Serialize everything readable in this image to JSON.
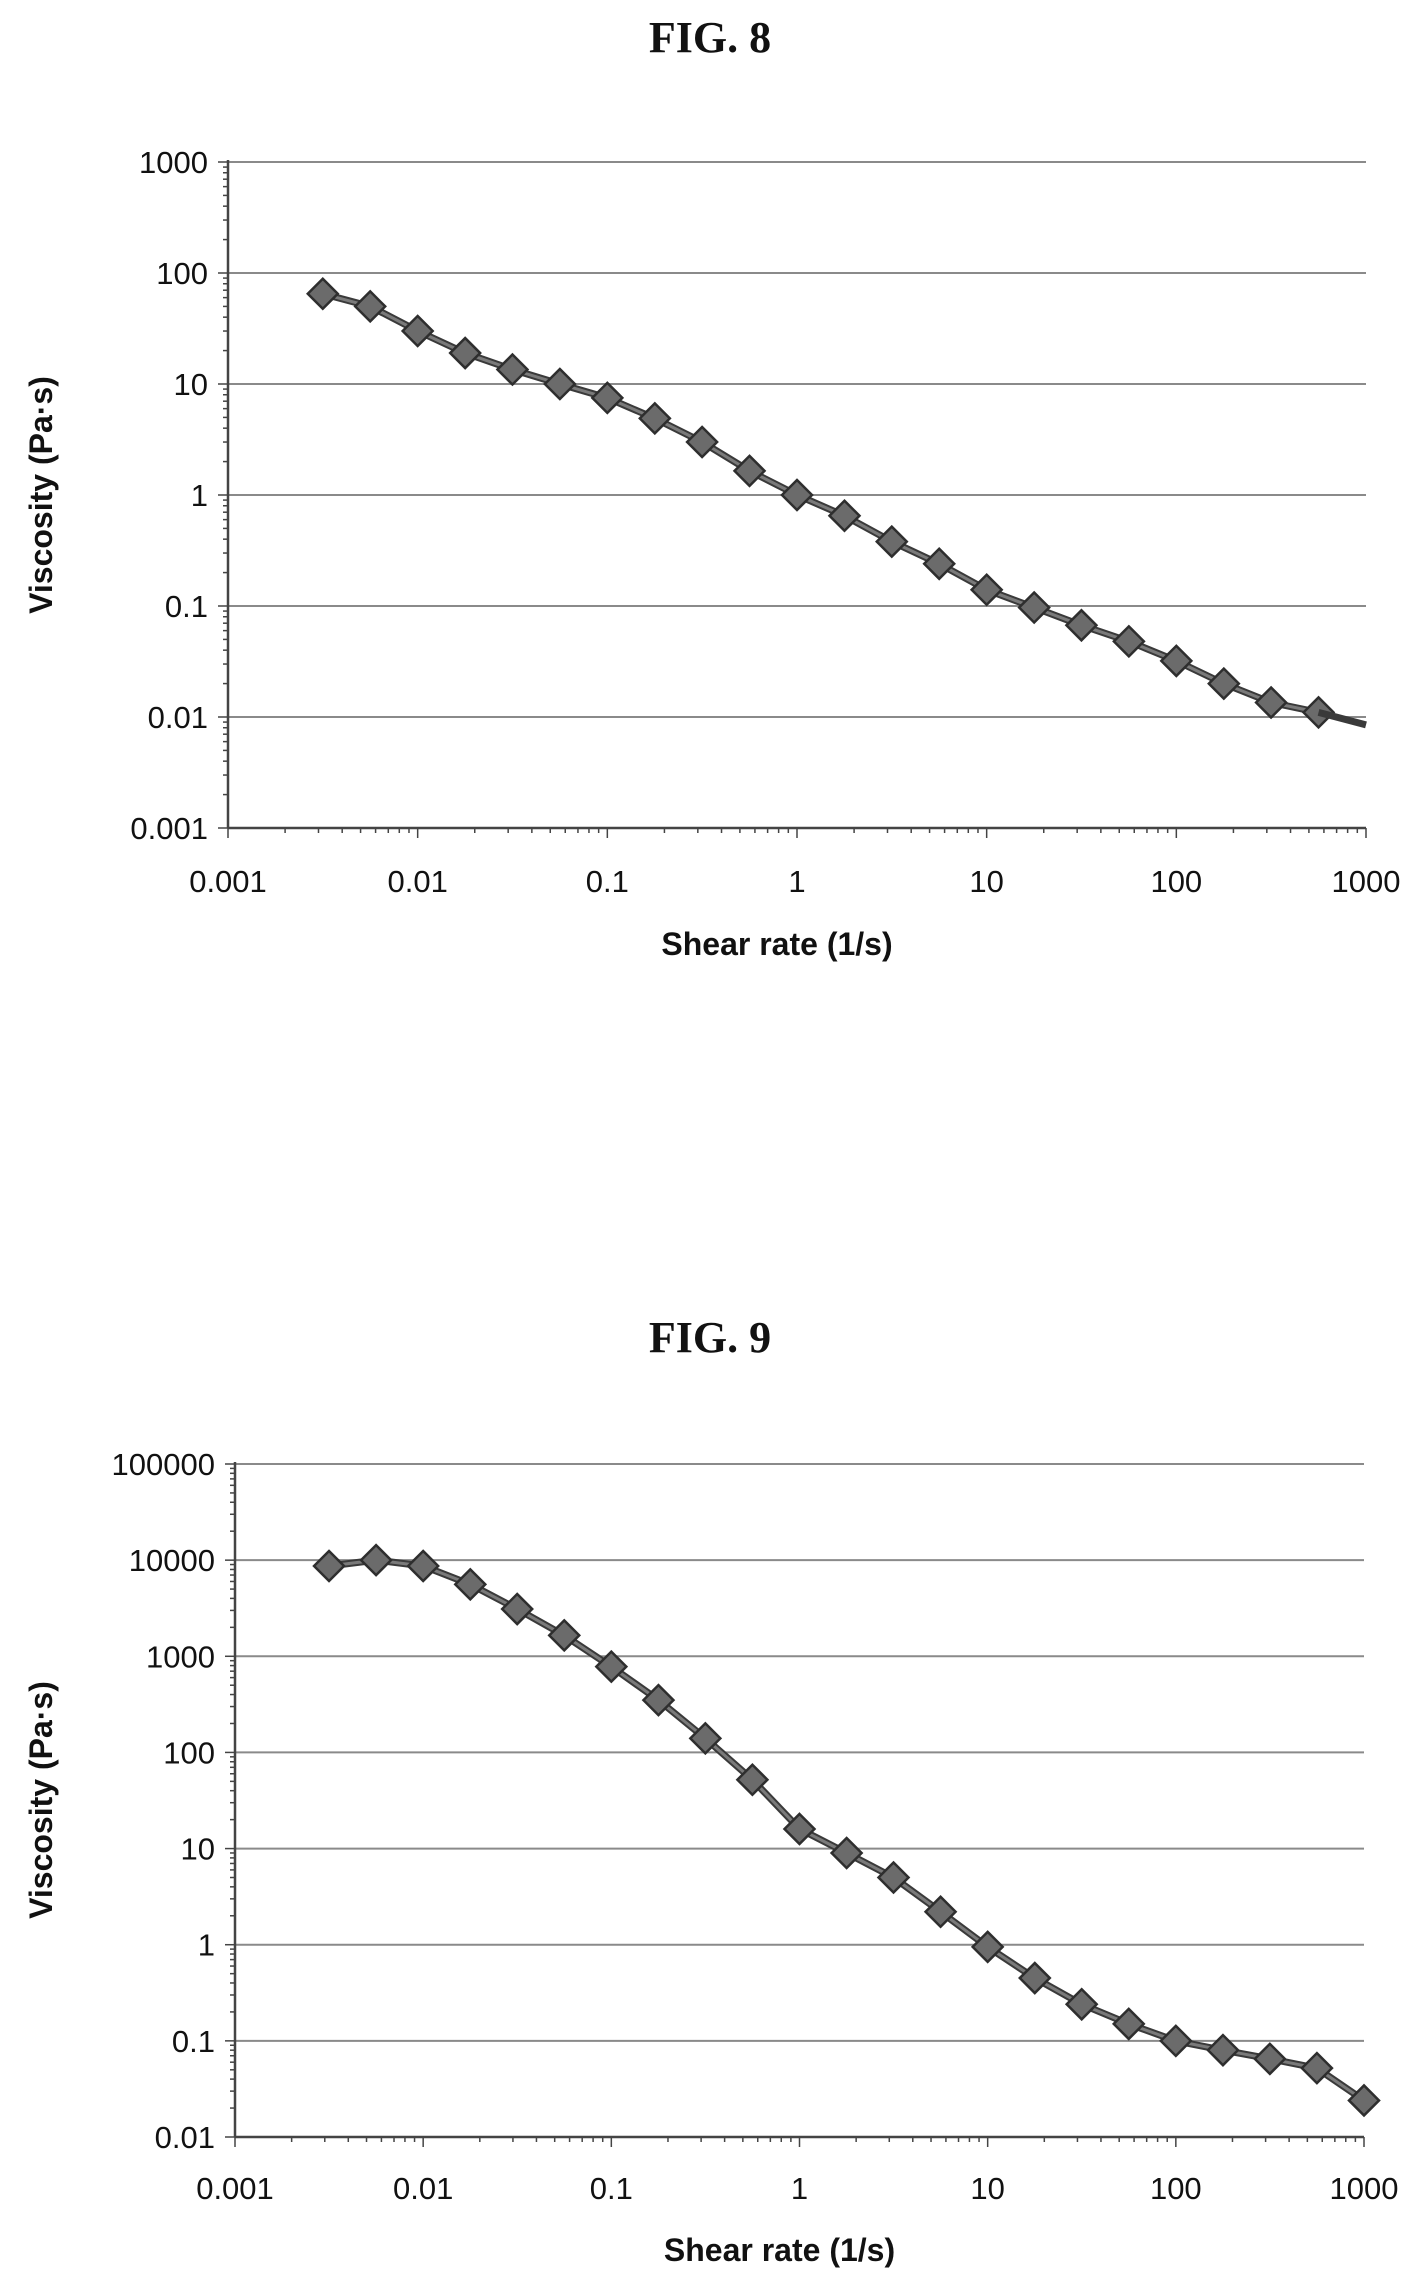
{
  "figures": [
    {
      "title": "FIG. 8"
    },
    {
      "title": "FIG. 9"
    }
  ],
  "chart_data": [
    {
      "type": "line",
      "title": "FIG. 8",
      "xlabel": "Shear rate (1/s)",
      "ylabel": "Viscosity (Pa·s)",
      "x_scale": "log",
      "y_scale": "log",
      "xlim": [
        0.001,
        1000
      ],
      "ylim": [
        0.001,
        1000
      ],
      "x_ticks": [
        "0.001",
        "0.01",
        "0.1",
        "1",
        "10",
        "100",
        "1000"
      ],
      "y_ticks": [
        "0.001",
        "0.01",
        "0.1",
        "1",
        "10",
        "100",
        "1000"
      ],
      "grid": "horizontal",
      "marker": "diamond",
      "series": [
        {
          "x": [
            0.00316,
            0.00562,
            0.01,
            0.0178,
            0.0316,
            0.0562,
            0.1,
            0.178,
            0.316,
            0.562,
            1,
            1.78,
            3.16,
            5.62,
            10,
            17.8,
            31.6,
            56.2,
            100,
            178,
            316,
            562
          ],
          "y": [
            65,
            50,
            30,
            19,
            13.5,
            10,
            7.5,
            4.9,
            3.0,
            1.65,
            1.0,
            0.65,
            0.38,
            0.24,
            0.14,
            0.097,
            0.067,
            0.048,
            0.032,
            0.02,
            0.0135,
            0.011
          ]
        }
      ]
    },
    {
      "type": "line",
      "title": "FIG. 9",
      "xlabel": "Shear rate (1/s)",
      "ylabel": "Viscosity (Pa·s)",
      "x_scale": "log",
      "y_scale": "log",
      "xlim": [
        0.001,
        1000
      ],
      "ylim": [
        0.01,
        100000
      ],
      "x_ticks": [
        "0.001",
        "0.01",
        "0.1",
        "1",
        "10",
        "100",
        "1000"
      ],
      "y_ticks": [
        "0.01",
        "0.1",
        "1",
        "10",
        "100",
        "1000",
        "10000",
        "100000"
      ],
      "grid": "horizontal",
      "marker": "diamond",
      "series": [
        {
          "x": [
            0.00316,
            0.00562,
            0.01,
            0.0178,
            0.0316,
            0.0562,
            0.1,
            0.178,
            0.316,
            0.562,
            1,
            1.78,
            3.16,
            5.62,
            10,
            17.8,
            31.6,
            56.2,
            100,
            178,
            316,
            562,
            1000
          ],
          "y": [
            8700,
            10000,
            8700,
            5600,
            3100,
            1650,
            780,
            350,
            140,
            52,
            16,
            9,
            5,
            2.2,
            0.95,
            0.45,
            0.24,
            0.15,
            0.1,
            0.08,
            0.065,
            0.052,
            0.024
          ]
        }
      ]
    }
  ]
}
